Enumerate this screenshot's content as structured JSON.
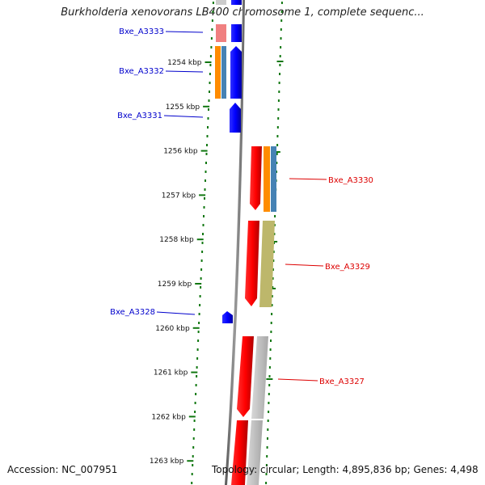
{
  "title": "Burkholderia xenovorans LB400 chromosome 1, complete sequenc...",
  "accession": "Accession: NC_007951",
  "topology": "Topology: circular; Length: 4,895,836 bp; Genes: 4,498",
  "ticks": [
    "1254 kbp",
    "1255 kbp",
    "1256 kbp",
    "1257 kbp",
    "1258 kbp",
    "1259 kbp",
    "1260 kbp",
    "1261 kbp",
    "1262 kbp",
    "1263 kbp"
  ],
  "genes": [
    {
      "name": "Bxe_A3333",
      "strand": "reverse",
      "color": "#0000cc"
    },
    {
      "name": "Bxe_A3332",
      "strand": "reverse",
      "color": "#0000cc"
    },
    {
      "name": "Bxe_A3331",
      "strand": "reverse",
      "color": "#0000cc"
    },
    {
      "name": "Bxe_A3330",
      "strand": "forward",
      "color": "#dd0000"
    },
    {
      "name": "Bxe_A3329",
      "strand": "forward",
      "color": "#dd0000"
    },
    {
      "name": "Bxe_A3328",
      "strand": "reverse",
      "color": "#0000cc"
    },
    {
      "name": "Bxe_A3327",
      "strand": "forward",
      "color": "#dd0000"
    }
  ],
  "colors": {
    "forward_gene": "#ff0000",
    "reverse_gene": "#0000ff",
    "backbone": "#888888",
    "ruler_ticks": "#117711",
    "cog_orange": "#ff8c00",
    "cog_steelblue": "#4682b4",
    "cog_khaki": "#bdb76b",
    "cog_grey": "#c0c0c0",
    "pink": "#f08080"
  }
}
